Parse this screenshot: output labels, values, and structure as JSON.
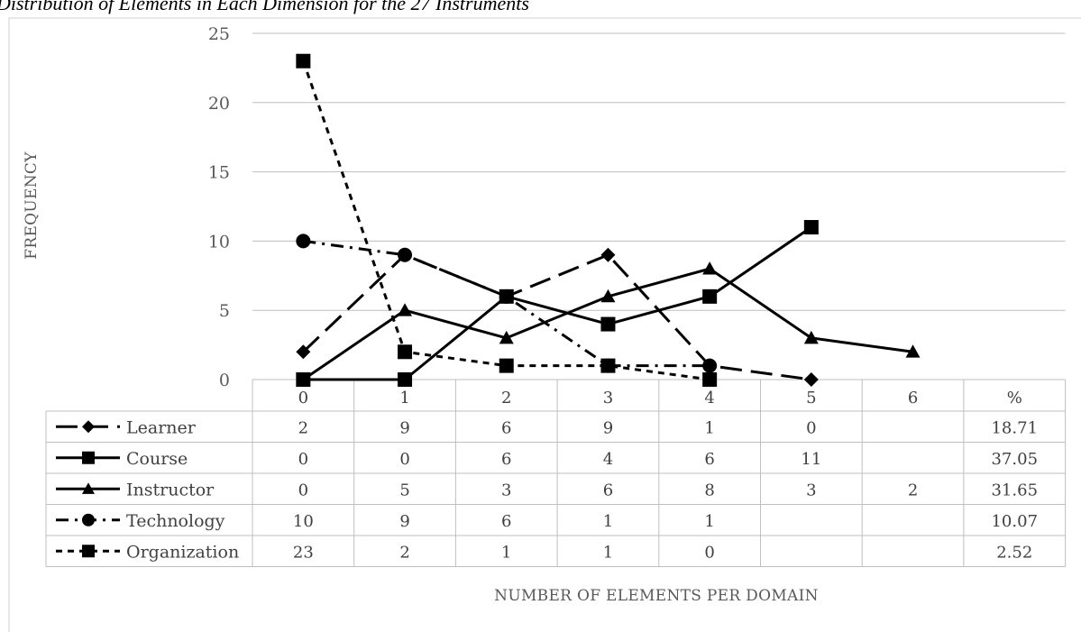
{
  "title": "Distribution of Elements in Each Dimension for the 27 Instruments",
  "chart_data": {
    "type": "line",
    "categories": [
      "0",
      "1",
      "2",
      "3",
      "4",
      "5",
      "6"
    ],
    "ylabel": "FREQUENCY",
    "xlabel": "NUMBER OF ELEMENTS PER DOMAIN",
    "ylim": [
      0,
      25
    ],
    "yticks": [
      "0",
      "5",
      "10",
      "15",
      "20",
      "25"
    ],
    "yticks_values": [
      0,
      5,
      10,
      15,
      20,
      25
    ],
    "percent_header": "%",
    "grid": true,
    "legend": "data table below chart",
    "series": [
      {
        "name": "Learner",
        "values": [
          2,
          9,
          6,
          9,
          1,
          0,
          null
        ],
        "cells": [
          "2",
          "9",
          "6",
          "9",
          "1",
          "0",
          ""
        ],
        "percent": "18.71",
        "marker": "diamond",
        "dash": "long-dash"
      },
      {
        "name": "Course",
        "values": [
          0,
          0,
          6,
          4,
          6,
          11,
          null
        ],
        "cells": [
          "0",
          "0",
          "6",
          "4",
          "6",
          "11",
          ""
        ],
        "percent": "37.05",
        "marker": "square",
        "dash": "solid"
      },
      {
        "name": "Instructor",
        "values": [
          0,
          5,
          3,
          6,
          8,
          3,
          2
        ],
        "cells": [
          "0",
          "5",
          "3",
          "6",
          "8",
          "3",
          "2"
        ],
        "percent": "31.65",
        "marker": "triangle",
        "dash": "solid"
      },
      {
        "name": "Technology",
        "values": [
          10,
          9,
          6,
          1,
          1,
          null,
          null
        ],
        "cells": [
          "10",
          "9",
          "6",
          "1",
          "1",
          "",
          ""
        ],
        "percent": "10.07",
        "marker": "circle",
        "dash": "dash-dot"
      },
      {
        "name": "Organization",
        "values": [
          23,
          2,
          1,
          1,
          0,
          null,
          null
        ],
        "cells": [
          "23",
          "2",
          "1",
          "1",
          "0",
          "",
          ""
        ],
        "percent": "2.52",
        "marker": "square",
        "dash": "short-dash"
      }
    ]
  },
  "colors": {
    "line": "#000000",
    "grid": "#bfbfbf",
    "text": "#404040"
  }
}
